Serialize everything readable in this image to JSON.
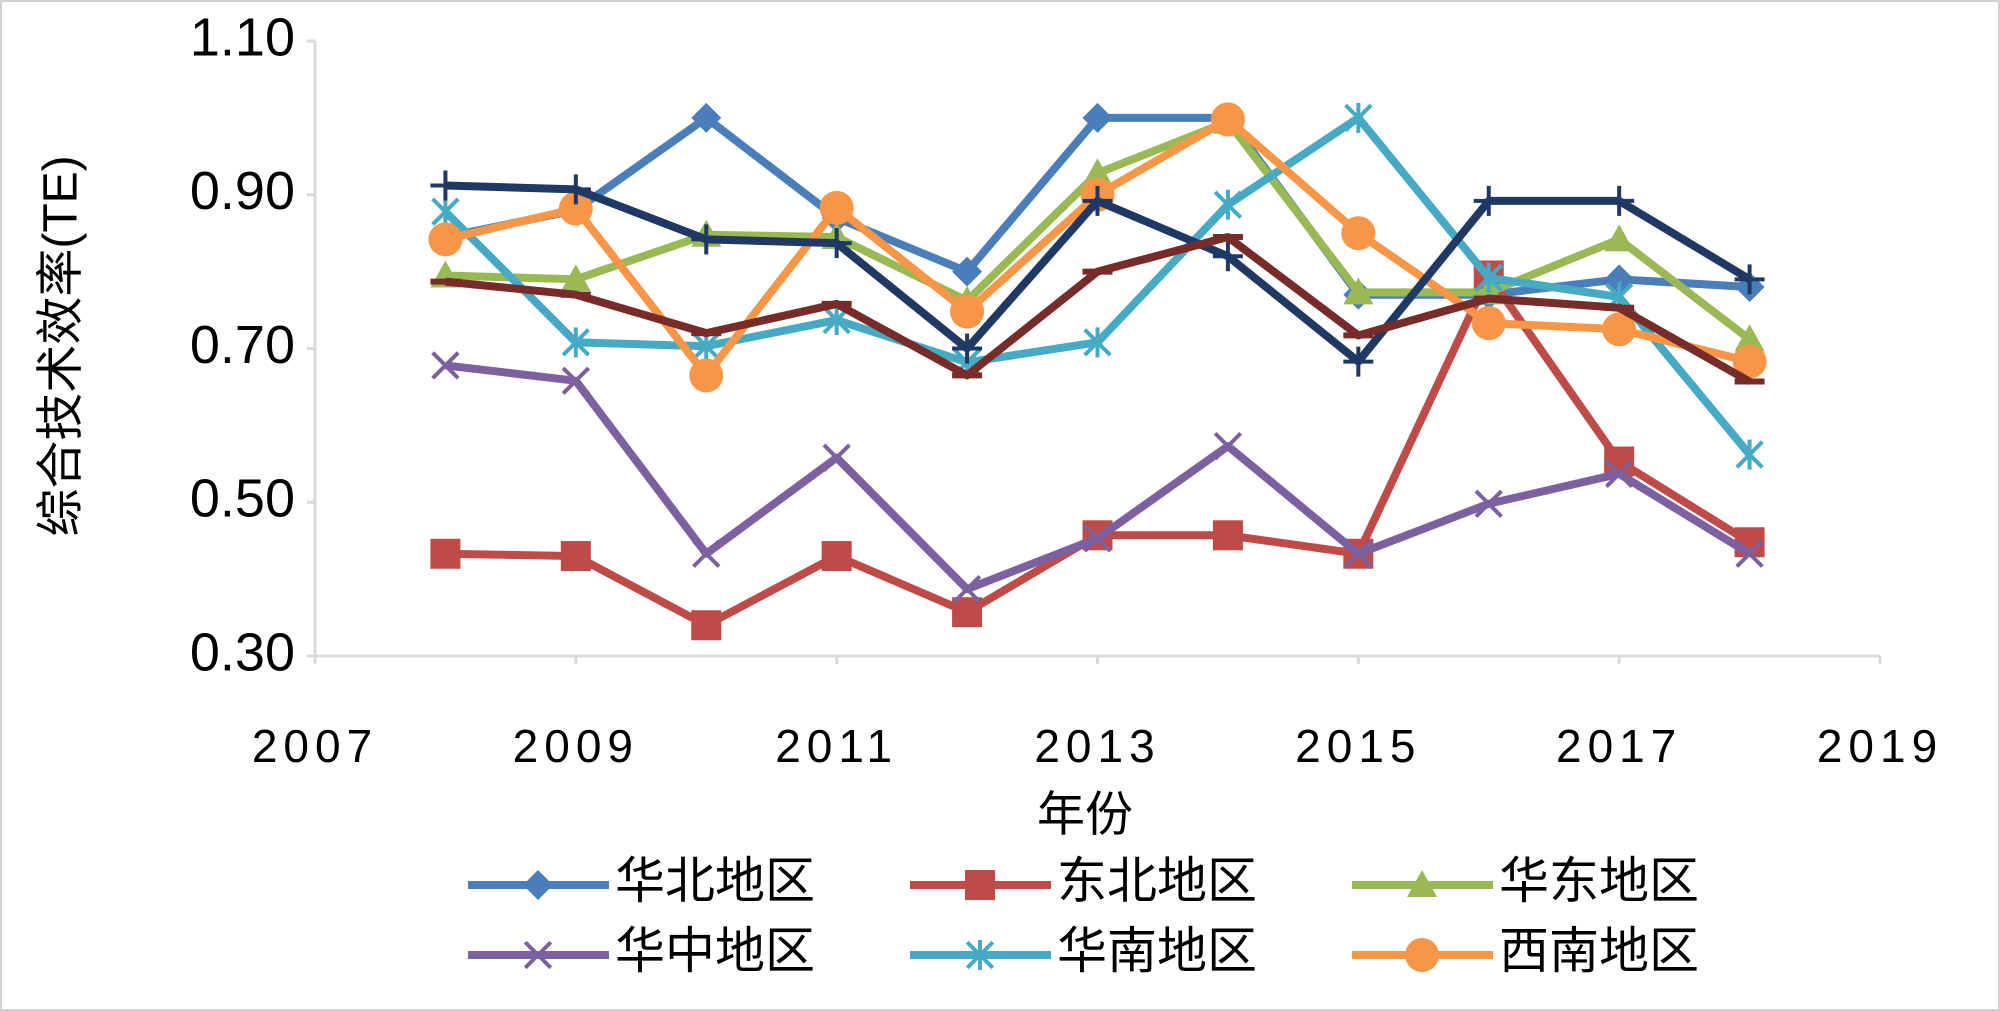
{
  "chart_data": {
    "type": "line",
    "x_label": "年份",
    "y_label": "综合技术效率(TE)",
    "x": [
      2008,
      2009,
      2010,
      2011,
      2012,
      2013,
      2014,
      2015,
      2016,
      2017,
      2018
    ],
    "xlim": [
      2007,
      2019
    ],
    "xticks": [
      2007,
      2009,
      2011,
      2013,
      2015,
      2017,
      2019
    ],
    "ylim": [
      0.3,
      1.1
    ],
    "yticks": [
      {
        "value": 0.3,
        "label": "0.30"
      },
      {
        "value": 0.5,
        "label": "0.50"
      },
      {
        "value": 0.7,
        "label": "0.70"
      },
      {
        "value": 0.9,
        "label": "0.90"
      },
      {
        "value": 1.1,
        "label": "1.10"
      }
    ],
    "grid": false,
    "legend": "bottom",
    "series": [
      {
        "name": "华北地区",
        "color": "#4a7ebb",
        "marker": "diamond",
        "values": [
          0.845,
          0.88,
          1.0,
          0.87,
          0.8,
          1.0,
          1.0,
          0.77,
          0.77,
          0.79,
          0.78
        ]
      },
      {
        "name": "东北地区",
        "color": "#be4b48",
        "marker": "square",
        "values": [
          0.433,
          0.43,
          0.34,
          0.43,
          0.357,
          0.457,
          0.457,
          0.433,
          0.795,
          0.553,
          0.448
        ]
      },
      {
        "name": "华东地区",
        "color": "#98b954",
        "marker": "triangle",
        "values": [
          0.795,
          0.79,
          0.848,
          0.845,
          0.762,
          0.928,
          0.995,
          0.773,
          0.773,
          0.842,
          0.712
        ]
      },
      {
        "name": "华中地区",
        "color": "#7d60a0",
        "marker": "x",
        "values": [
          0.678,
          0.658,
          0.433,
          0.558,
          0.387,
          0.453,
          0.573,
          0.433,
          0.498,
          0.537,
          0.433
        ]
      },
      {
        "name": "华南地区",
        "color": "#46aac5",
        "marker": "star",
        "values": [
          0.878,
          0.708,
          0.703,
          0.737,
          0.682,
          0.708,
          0.887,
          1.0,
          0.792,
          0.767,
          0.562
        ]
      },
      {
        "name": "西南地区",
        "color": "#f79646",
        "marker": "circle",
        "values": [
          0.842,
          0.882,
          0.665,
          0.883,
          0.748,
          0.9,
          0.998,
          0.85,
          0.733,
          0.725,
          0.683
        ]
      },
      {
        "color": "#203864",
        "marker": "plus",
        "values": [
          0.912,
          0.907,
          0.842,
          0.837,
          0.7,
          0.892,
          0.82,
          0.683,
          0.892,
          0.892,
          0.79
        ]
      },
      {
        "color": "#772c2a",
        "marker": "dash",
        "values": [
          0.787,
          0.77,
          0.72,
          0.758,
          0.665,
          0.8,
          0.845,
          0.717,
          0.765,
          0.753,
          0.657
        ]
      }
    ]
  }
}
